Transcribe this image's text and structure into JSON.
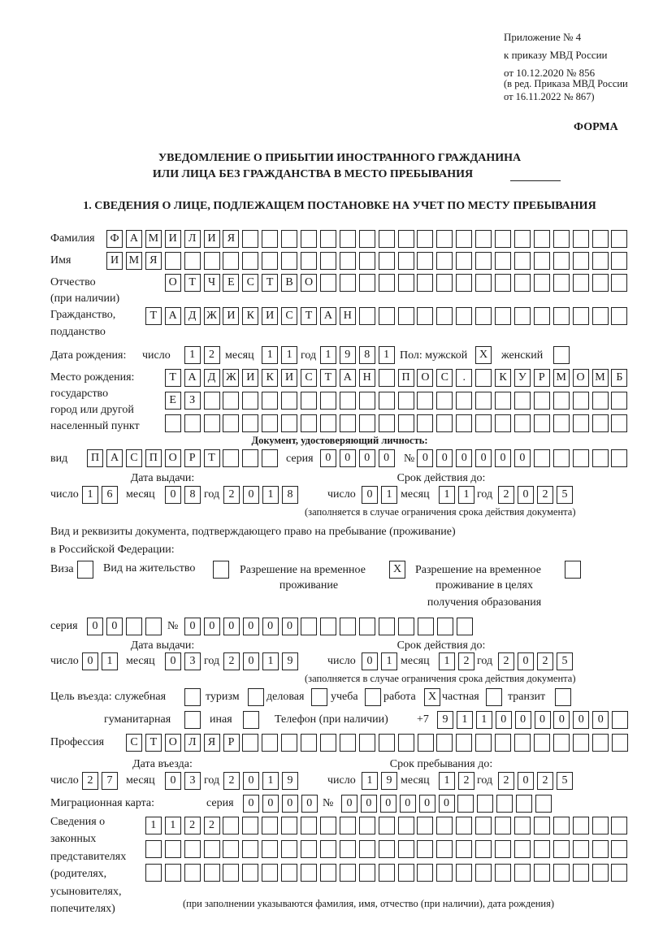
{
  "header": {
    "line1": "Приложение № 4",
    "line2": "к приказу МВД России",
    "line3": "от 10.12.2020 № 856",
    "amend1": "(в ред. Приказа МВД России",
    "amend2": "от 16.11.2022 № 867)",
    "form_label": "ФОРМА"
  },
  "title": {
    "line1": "УВЕДОМЛЕНИЕ О ПРИБЫТИИ ИНОСТРАННОГО ГРАЖДАНИНА",
    "line2": "ИЛИ ЛИЦА БЕЗ ГРАЖДАНСТВА В МЕСТО ПРЕБЫВАНИЯ"
  },
  "section1_title": "1. СВЕДЕНИЯ О ЛИЦЕ, ПОДЛЕЖАЩЕМ ПОСТАНОВКЕ НА УЧЕТ ПО МЕСТУ ПРЕБЫВАНИЯ",
  "labels": {
    "surname": "Фамилия",
    "name": "Имя",
    "patronymic": "Отчество",
    "patronymic_note": "(при наличии)",
    "citizenship": "Гражданство,",
    "citizenship2": "подданство",
    "birth_date": "Дата рождения:",
    "day": "число",
    "month": "месяц",
    "year": "год",
    "sex_male": "Пол: мужской",
    "sex_female": "женский",
    "birthplace1": "Место рождения:",
    "birthplace2": "государство",
    "birthplace3": "город или другой",
    "birthplace4": "населенный пункт",
    "id_doc_heading": "Документ, удостоверяющий личность:",
    "doc_type": "вид",
    "series": "серия",
    "number": "№",
    "issue_date": "Дата выдачи:",
    "valid_until": "Срок действия до:",
    "validity_note": "(заполняется в случае ограничения срока действия документа)",
    "right_doc1": "Вид и реквизиты документа, подтверждающего право на пребывание (проживание)",
    "right_doc2": "в Российской Федерации:",
    "visa": "Виза",
    "residence_permit": "Вид на жительство",
    "temp_residence1": "Разрешение на временное",
    "temp_residence2": "проживание",
    "temp_edu1": "Разрешение на временное",
    "temp_edu2": "проживание в целях",
    "temp_edu3": "получения образования",
    "purpose": "Цель въезда: служебная",
    "tourism": "туризм",
    "business": "деловая",
    "study": "учеба",
    "work": "работа",
    "private": "частная",
    "transit": "транзит",
    "humanitarian": "гуманитарная",
    "other": "иная",
    "phone": "Телефон (при наличии)",
    "phone_prefix": "+7",
    "profession": "Профессия",
    "entry_date": "Дата въезда:",
    "stay_until": "Срок пребывания до:",
    "migration_card": "Миграционная карта:",
    "reps1": "Сведения о",
    "reps2": "законных",
    "reps3": "представителях",
    "reps4": "(родителях,",
    "reps5": "усыновителях,",
    "reps6": "попечителях)",
    "reps_note": "(при заполнении указываются фамилия, имя, отчество (при наличии), дата рождения)"
  },
  "fields": {
    "surname": "ФАМИЛИЯ",
    "name": "ИМЯ",
    "patronymic": "ОТЧЕСТВО",
    "citizenship": "ТАДЖИКИСТАН",
    "birth_day": "12",
    "birth_month": "11",
    "birth_year": "1981",
    "sex_male": "X",
    "sex_female": "",
    "birthplace_row1": "ТАДЖИКИСТАН ПОС. КУРМОМБ",
    "birthplace_row2": "ЕЗ",
    "birthplace_row3": "",
    "id_type": "ПАСПОРТ",
    "id_series": "0000",
    "id_number": "000000",
    "id_issue_day": "16",
    "id_issue_month": "08",
    "id_issue_year": "2018",
    "id_valid_day": "01",
    "id_valid_month": "11",
    "id_valid_year": "2025",
    "visa": "",
    "residence_permit": "",
    "temp_residence": "X",
    "temp_edu": "",
    "rd_series": "00",
    "rd_number": "000000",
    "rd_issue_day": "01",
    "rd_issue_month": "03",
    "rd_issue_year": "2019",
    "rd_valid_day": "01",
    "rd_valid_month": "12",
    "rd_valid_year": "2025",
    "purpose_official": "",
    "purpose_tourism": "",
    "purpose_business": "",
    "purpose_study": "",
    "purpose_work": "X",
    "purpose_private": "",
    "purpose_transit": "",
    "purpose_humanitarian": "",
    "purpose_other": "",
    "phone": "911000000",
    "profession": "СТОЛЯР",
    "entry_day": "27",
    "entry_month": "03",
    "entry_year": "2019",
    "stay_day": "19",
    "stay_month": "12",
    "stay_year": "2025",
    "mc_series": "0000",
    "mc_number": "000000",
    "reps_row1": "1122",
    "reps_row2": "",
    "reps_row3": ""
  }
}
